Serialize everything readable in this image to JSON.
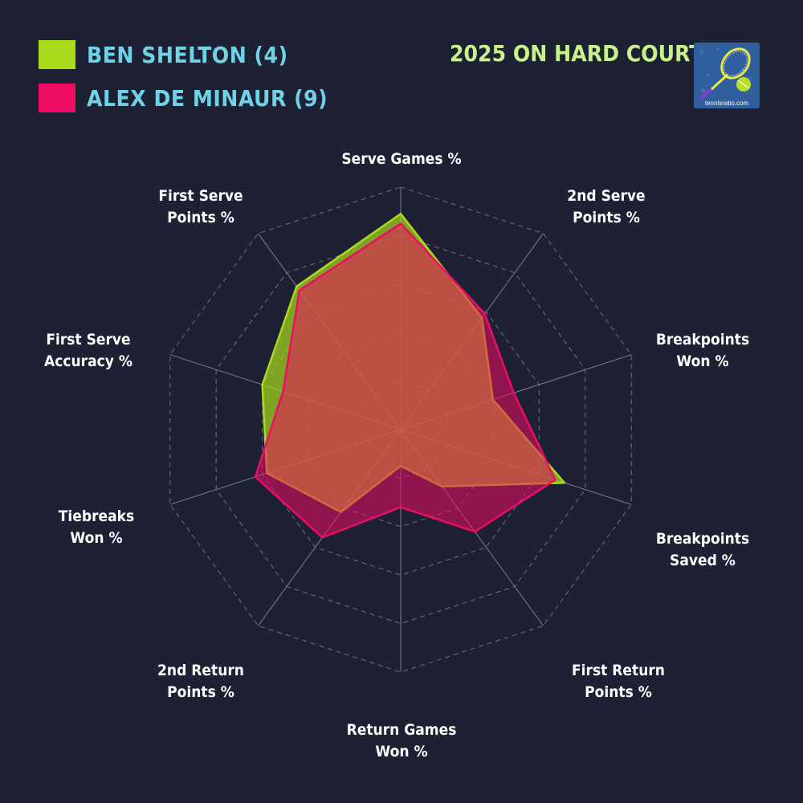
{
  "legend": {
    "entries": [
      {
        "name": "BEN SHELTON (4)",
        "color": "#a8dc1c"
      },
      {
        "name": "ALEX DE MINAUR (9)",
        "color": "#ee0d63"
      }
    ]
  },
  "headline": "2025 ON HARD COURTS",
  "logo": {
    "text": "tennisratio.com",
    "icon": "tennis-racket-ball-icon"
  },
  "chart_data": {
    "type": "radar",
    "axes": [
      "Serve Games %",
      "2nd Serve\nPoints %",
      "Breakpoints\nWon %",
      "Breakpoints\nSaved %",
      "First Return\nPoints %",
      "Return Games\nWon %",
      "2nd Return\nPoints %",
      "Tiebreaks\nWon %",
      "First Serve\nAccuracy %",
      "First Serve\nPoints %"
    ],
    "rmax": 1.0,
    "rings": 5,
    "grid": true,
    "legend_position": "top-left",
    "series": [
      {
        "name": "BEN SHELTON (4)",
        "color": "#a8dc1c",
        "values": [
          0.89,
          0.57,
          0.4,
          0.71,
          0.29,
          0.15,
          0.42,
          0.58,
          0.6,
          0.73
        ]
      },
      {
        "name": "ALEX DE MINAUR (9)",
        "color": "#ee0d63",
        "values": [
          0.85,
          0.59,
          0.49,
          0.67,
          0.52,
          0.32,
          0.55,
          0.63,
          0.51,
          0.71
        ]
      }
    ]
  }
}
